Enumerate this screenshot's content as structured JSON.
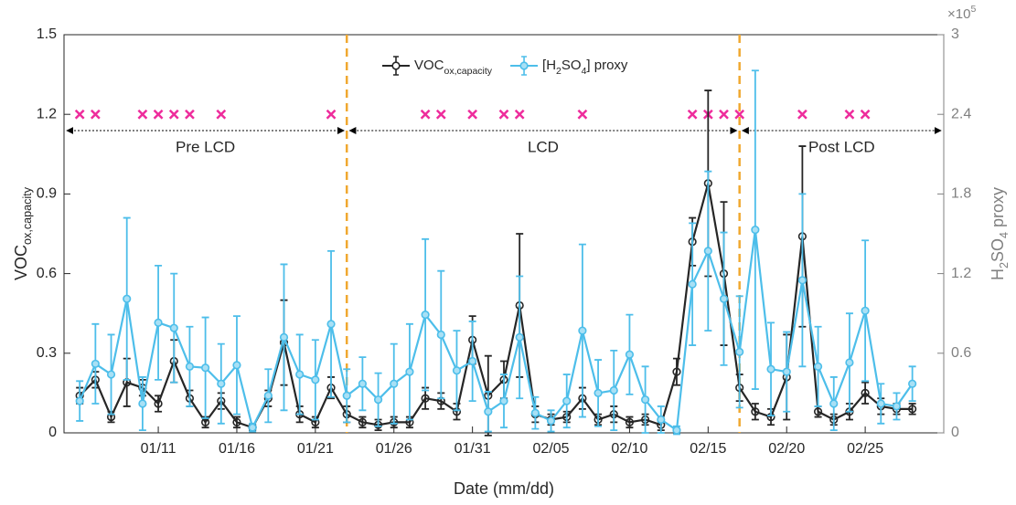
{
  "chart_data": {
    "type": "line",
    "xlabel": "Date (mm/dd)",
    "ylabel": [
      "VOC",
      "ox,capacity"
    ],
    "y2label": [
      "H",
      "2",
      "SO",
      "4",
      " proxy"
    ],
    "y2_exponent": [
      "×10",
      "5"
    ],
    "x": [
      "01/06",
      "01/07",
      "01/08",
      "01/09",
      "01/10",
      "01/11",
      "01/12",
      "01/13",
      "01/14",
      "01/15",
      "01/16",
      "01/17",
      "01/18",
      "01/19",
      "01/20",
      "01/21",
      "01/22",
      "01/23",
      "01/24",
      "01/25",
      "01/26",
      "01/27",
      "01/28",
      "01/29",
      "01/30",
      "01/31",
      "02/01",
      "02/02",
      "02/03",
      "02/04",
      "02/05",
      "02/06",
      "02/07",
      "02/08",
      "02/09",
      "02/10",
      "02/11",
      "02/12",
      "02/13",
      "02/14",
      "02/15",
      "02/16",
      "02/17",
      "02/18",
      "02/19",
      "02/20",
      "02/21",
      "02/22",
      "02/23",
      "02/24",
      "02/25",
      "02/26",
      "02/27",
      "02/28"
    ],
    "xlim": [
      "01/05",
      "03/01"
    ],
    "xticks": [
      "01/11",
      "01/16",
      "01/21",
      "01/26",
      "01/31",
      "02/05",
      "02/10",
      "02/15",
      "02/20",
      "02/25"
    ],
    "ylim": [
      0,
      1.5
    ],
    "yticks": [
      0,
      0.3,
      0.6,
      0.9,
      1.2,
      1.5
    ],
    "y2lim": [
      0,
      3
    ],
    "y2ticks": [
      0,
      0.6,
      1.2,
      1.8,
      2.4,
      3
    ],
    "legend": "top",
    "series": [
      {
        "name": [
          "VOC",
          "ox,capacity"
        ],
        "color": "#262626",
        "values": [
          0.14,
          0.2,
          0.06,
          0.19,
          0.17,
          0.11,
          0.27,
          0.13,
          0.04,
          0.12,
          0.04,
          0.02,
          0.13,
          0.34,
          0.07,
          0.04,
          0.17,
          0.07,
          0.04,
          0.03,
          0.04,
          0.04,
          0.13,
          0.12,
          0.08,
          0.35,
          0.14,
          0.2,
          0.48,
          0.07,
          0.05,
          0.06,
          0.13,
          0.05,
          0.07,
          0.04,
          0.05,
          0.03,
          0.23,
          0.72,
          0.94,
          0.6,
          0.17,
          0.08,
          0.06,
          0.21,
          0.74,
          0.08,
          0.05,
          0.08,
          0.15,
          0.1,
          0.09,
          0.09
        ],
        "errors": [
          0.03,
          0.03,
          0.02,
          0.09,
          0.03,
          0.03,
          0.08,
          0.03,
          0.02,
          0.03,
          0.02,
          0.01,
          0.03,
          0.16,
          0.03,
          0.02,
          0.04,
          0.03,
          0.02,
          0.02,
          0.02,
          0.02,
          0.04,
          0.03,
          0.03,
          0.09,
          0.15,
          0.07,
          0.27,
          0.03,
          0.02,
          0.02,
          0.04,
          0.02,
          0.03,
          0.02,
          0.02,
          0.02,
          0.05,
          0.09,
          0.35,
          0.27,
          0.05,
          0.03,
          0.03,
          0.16,
          0.34,
          0.02,
          0.02,
          0.03,
          0.04,
          0.03,
          0.02,
          0.02
        ]
      },
      {
        "name": [
          "[H",
          "2",
          "SO",
          "4",
          "] proxy"
        ],
        "color": "#4dbeea",
        "axis": "y2",
        "values": [
          0.24,
          0.52,
          0.44,
          1.01,
          0.22,
          0.83,
          0.79,
          0.5,
          0.49,
          0.37,
          0.51,
          0.04,
          0.28,
          0.72,
          0.44,
          0.4,
          0.82,
          0.28,
          0.37,
          0.25,
          0.37,
          0.46,
          0.89,
          0.74,
          0.47,
          0.54,
          0.16,
          0.24,
          0.72,
          0.15,
          0.09,
          0.24,
          0.77,
          0.3,
          0.32,
          0.59,
          0.25,
          0.1,
          0.02,
          1.12,
          1.37,
          1.01,
          0.61,
          1.53,
          0.48,
          0.46,
          1.15,
          0.5,
          0.22,
          0.53,
          0.92,
          0.22,
          0.2,
          0.37
        ],
        "errors": [
          0.15,
          0.3,
          0.3,
          0.61,
          0.2,
          0.43,
          0.41,
          0.3,
          0.38,
          0.3,
          0.37,
          0.03,
          0.2,
          0.55,
          0.3,
          0.3,
          0.55,
          0.2,
          0.2,
          0.2,
          0.3,
          0.36,
          0.57,
          0.48,
          0.3,
          0.3,
          0.15,
          0.2,
          0.46,
          0.12,
          0.08,
          0.2,
          0.65,
          0.25,
          0.3,
          0.3,
          0.25,
          0.1,
          0.03,
          0.46,
          0.6,
          0.5,
          0.42,
          1.2,
          0.35,
          0.3,
          0.65,
          0.3,
          0.2,
          0.37,
          0.53,
          0.15,
          0.1,
          0.13
        ]
      }
    ],
    "markers": {
      "x": [
        "01/06",
        "01/07",
        "01/10",
        "01/11",
        "01/12",
        "01/13",
        "01/15",
        "01/22",
        "01/28",
        "01/29",
        "01/31",
        "02/02",
        "02/03",
        "02/07",
        "02/14",
        "02/15",
        "02/16",
        "02/17",
        "02/21",
        "02/24",
        "02/25"
      ],
      "y": 1.2,
      "color": "#ee2c9c"
    },
    "vlines": [
      "01/23",
      "02/17"
    ],
    "vline_color": "#f0a830",
    "periods": [
      "Pre LCD",
      "LCD",
      "Post LCD"
    ]
  }
}
